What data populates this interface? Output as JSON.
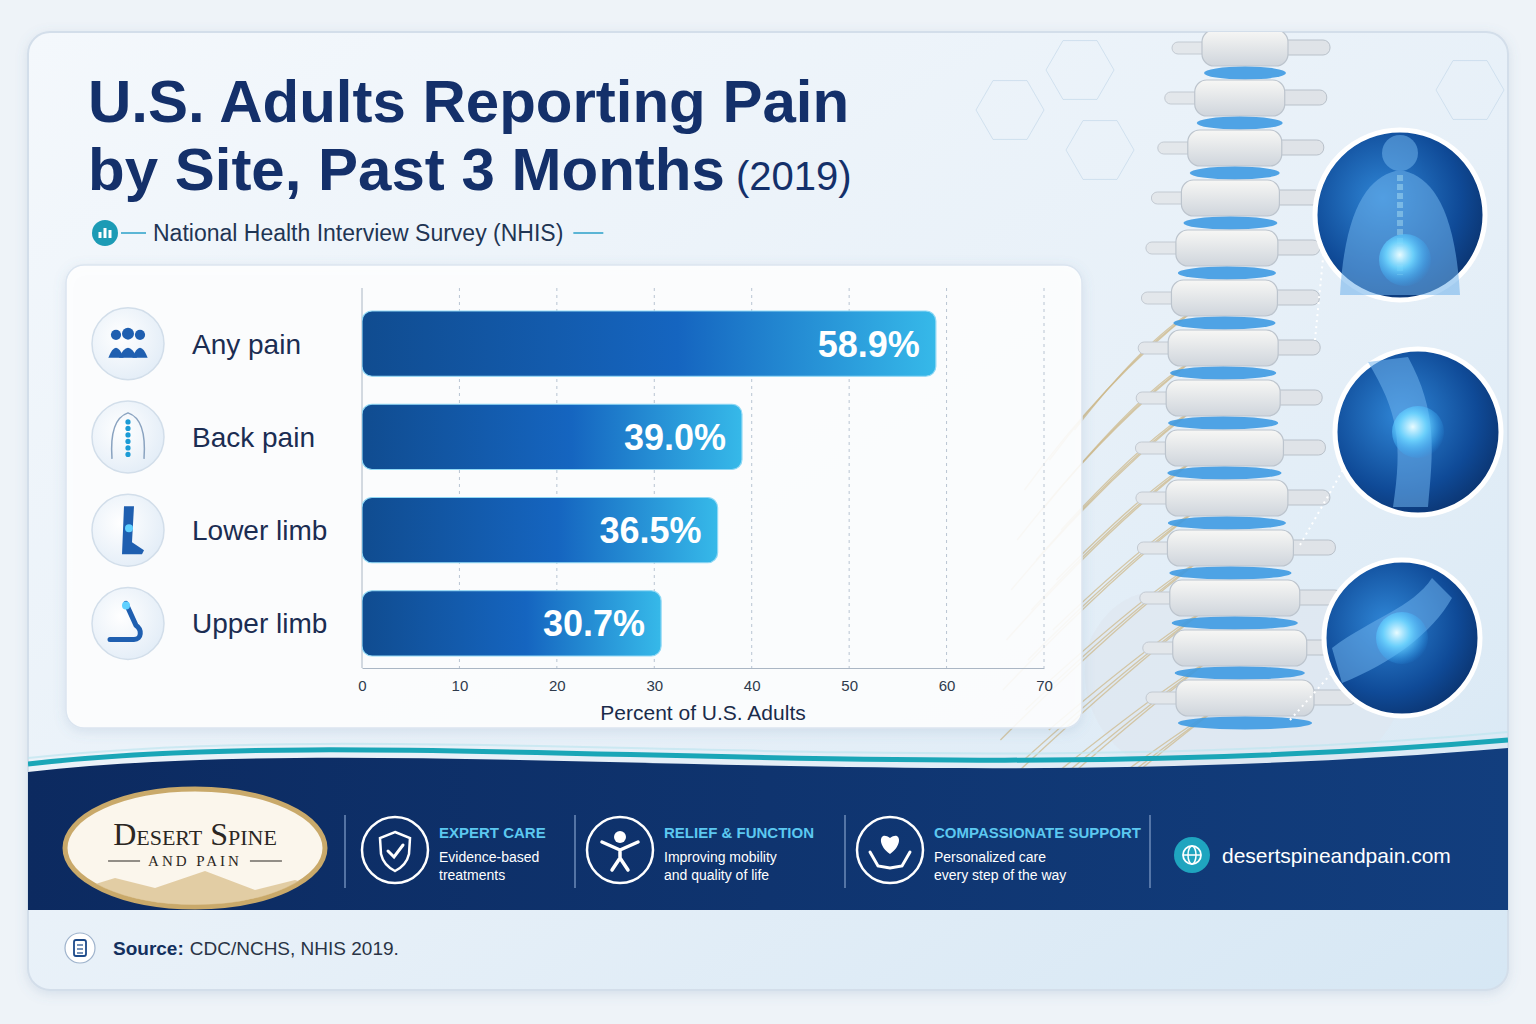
{
  "chart_data": {
    "type": "bar",
    "orientation": "horizontal",
    "title": "U.S. Adults Reporting Pain by Site, Past 3 Months (2019)",
    "subtitle": "National Health Interview Survey (NHIS)",
    "categories": [
      "Any pain",
      "Back pain",
      "Lower limb",
      "Upper limb"
    ],
    "values": [
      58.9,
      39.0,
      36.5,
      30.7
    ],
    "value_labels": [
      "58.9%",
      "39.0%",
      "36.5%",
      "30.7%"
    ],
    "data_labels": true,
    "color": "#1565c0",
    "xlim": [
      0,
      70
    ],
    "xticks": [
      0,
      10,
      20,
      30,
      40,
      50,
      60,
      70
    ],
    "xlabel": "Percent of U.S. Adults",
    "grid": true
  },
  "page": {
    "brand": {
      "name": "Desert Spine",
      "tagline": "AND PAIN"
    },
    "features": [
      {
        "title": "EXPERT CARE",
        "text": "Evidence-based treatments"
      },
      {
        "title": "RELIEF & FUNCTION",
        "text": "Improving mobility and quality of life"
      },
      {
        "title": "COMPASSIONATE SUPPORT",
        "text": "Personalized care every step of the way"
      }
    ],
    "website": "desertspineandpain.com",
    "source": {
      "label": "Source:",
      "text": "CDC/NCHS, NHIS 2019."
    }
  }
}
